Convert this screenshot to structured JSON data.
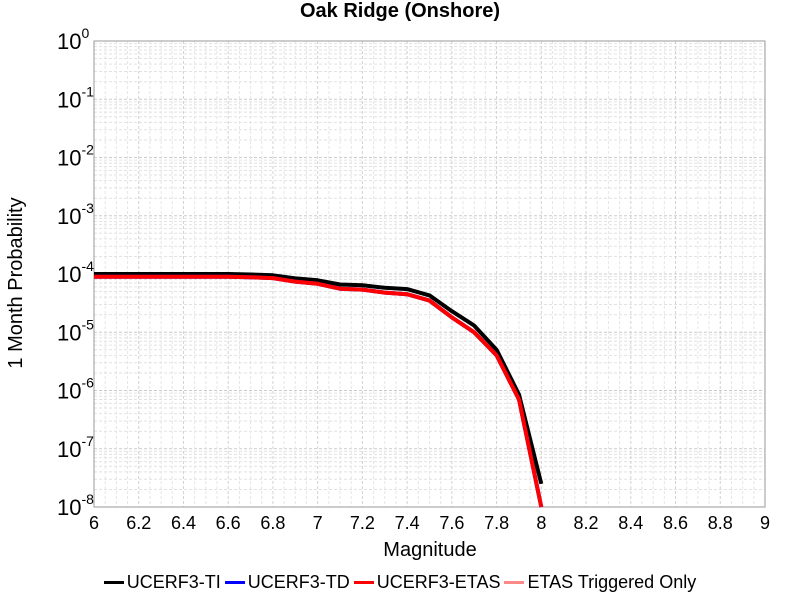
{
  "chart_data": {
    "type": "line",
    "title": "Oak Ridge (Onshore)",
    "xlabel": "Magnitude",
    "ylabel": "1 Month Probability",
    "xlim": [
      6,
      9
    ],
    "ylim": [
      1e-08,
      1
    ],
    "yscale": "log",
    "grid": true,
    "legend_position": "bottom",
    "x_ticks": [
      "6",
      "6.2",
      "6.4",
      "6.6",
      "6.8",
      "7",
      "7.2",
      "7.4",
      "7.6",
      "7.8",
      "8",
      "8.2",
      "8.4",
      "8.6",
      "8.8",
      "9"
    ],
    "y_ticks": [
      {
        "base": "10",
        "exp": "0"
      },
      {
        "base": "10",
        "exp": "-1"
      },
      {
        "base": "10",
        "exp": "-2"
      },
      {
        "base": "10",
        "exp": "-3"
      },
      {
        "base": "10",
        "exp": "-4"
      },
      {
        "base": "10",
        "exp": "-5"
      },
      {
        "base": "10",
        "exp": "-6"
      },
      {
        "base": "10",
        "exp": "-7"
      },
      {
        "base": "10",
        "exp": "-8"
      }
    ],
    "series": [
      {
        "name": "UCERF3-TI",
        "color": "#000000",
        "x": [
          6.0,
          6.1,
          6.2,
          6.3,
          6.4,
          6.5,
          6.6,
          6.7,
          6.8,
          6.9,
          7.0,
          7.1,
          7.2,
          7.3,
          7.4,
          7.5,
          7.6,
          7.7,
          7.8,
          7.9,
          8.0
        ],
        "y": [
          0.0001,
          0.0001,
          0.0001,
          0.0001,
          0.0001,
          0.0001,
          0.0001,
          9.8e-05,
          9.5e-05,
          8.4e-05,
          7.8e-05,
          6.6e-05,
          6.4e-05,
          5.8e-05,
          5.5e-05,
          4.3e-05,
          2.3e-05,
          1.3e-05,
          5e-06,
          8.5e-07,
          2.5e-08
        ]
      },
      {
        "name": "UCERF3-TD",
        "color": "#0000ff",
        "x": [
          6.0,
          6.1,
          6.2,
          6.3,
          6.4,
          6.5,
          6.6,
          6.7,
          6.8,
          6.9,
          7.0,
          7.1,
          7.2,
          7.3,
          7.4,
          7.5,
          7.6,
          7.7,
          7.8,
          7.9,
          8.0
        ],
        "y": [
          9e-05,
          9e-05,
          9e-05,
          9e-05,
          9e-05,
          9e-05,
          9e-05,
          8.8e-05,
          8.5e-05,
          7.4e-05,
          6.8e-05,
          5.6e-05,
          5.4e-05,
          4.8e-05,
          4.5e-05,
          3.5e-05,
          1.8e-05,
          1e-05,
          4e-06,
          7e-07,
          1e-08
        ]
      },
      {
        "name": "UCERF3-ETAS",
        "color": "#ff0000",
        "x": [
          6.0,
          6.1,
          6.2,
          6.3,
          6.4,
          6.5,
          6.6,
          6.7,
          6.8,
          6.9,
          7.0,
          7.1,
          7.2,
          7.3,
          7.4,
          7.5,
          7.6,
          7.7,
          7.8,
          7.9,
          8.0
        ],
        "y": [
          9e-05,
          9e-05,
          9e-05,
          9e-05,
          9e-05,
          9e-05,
          9e-05,
          8.8e-05,
          8.5e-05,
          7.4e-05,
          6.8e-05,
          5.6e-05,
          5.4e-05,
          4.8e-05,
          4.5e-05,
          3.5e-05,
          1.8e-05,
          1e-05,
          4e-06,
          7e-07,
          1e-08
        ]
      },
      {
        "name": "ETAS Triggered Only",
        "color": "#ff8888",
        "x": [],
        "y": []
      }
    ]
  }
}
